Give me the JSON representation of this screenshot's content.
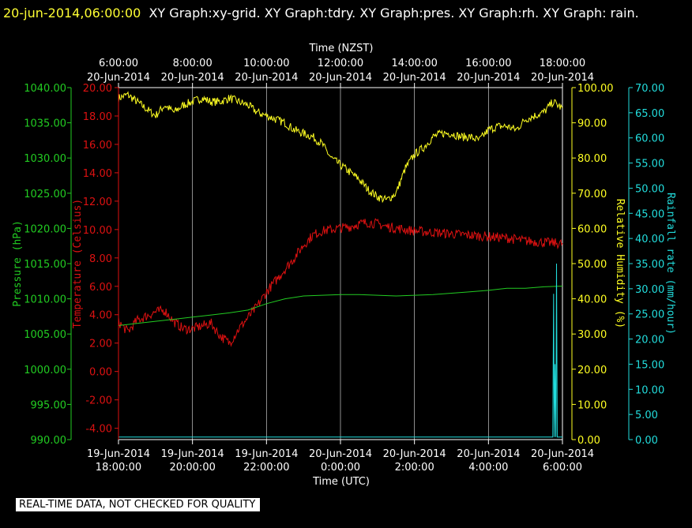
{
  "header": {
    "timestamp": "20-jun-2014,06:00:00",
    "title": "XY Graph:xy-grid.  XY Graph:tdry.  XY Graph:pres.  XY Graph:rh.  XY Graph: rain."
  },
  "disclaimer": "REAL-TIME DATA, NOT CHECKED FOR QUALITY",
  "colors": {
    "background": "#000000",
    "pressure": "#22cc22",
    "temperature": "#dd1111",
    "humidity": "#ffff22",
    "rain": "#22dddd",
    "grid": "#ffffff"
  },
  "chart_data": {
    "type": "line",
    "grid": true,
    "x_top": {
      "label": "Time (NZST)",
      "ticks": [
        {
          "t": 0,
          "line1": "6:00:00",
          "line2": "20-Jun-2014"
        },
        {
          "t": 2,
          "line1": "8:00:00",
          "line2": "20-Jun-2014"
        },
        {
          "t": 4,
          "line1": "10:00:00",
          "line2": "20-Jun-2014"
        },
        {
          "t": 6,
          "line1": "12:00:00",
          "line2": "20-Jun-2014"
        },
        {
          "t": 8,
          "line1": "14:00:00",
          "line2": "20-Jun-2014"
        },
        {
          "t": 10,
          "line1": "16:00:00",
          "line2": "20-Jun-2014"
        },
        {
          "t": 12,
          "line1": "18:00:00",
          "line2": "20-Jun-2014"
        }
      ]
    },
    "x_bottom": {
      "label": "Time (UTC)",
      "range": [
        0,
        12
      ],
      "ticks": [
        {
          "t": 0,
          "line1": "19-Jun-2014",
          "line2": "18:00:00"
        },
        {
          "t": 2,
          "line1": "19-Jun-2014",
          "line2": "20:00:00"
        },
        {
          "t": 4,
          "line1": "19-Jun-2014",
          "line2": "22:00:00"
        },
        {
          "t": 6,
          "line1": "20-Jun-2014",
          "line2": "0:00:00"
        },
        {
          "t": 8,
          "line1": "20-Jun-2014",
          "line2": "2:00:00"
        },
        {
          "t": 10,
          "line1": "20-Jun-2014",
          "line2": "4:00:00"
        },
        {
          "t": 12,
          "line1": "20-Jun-2014",
          "line2": "6:00:00"
        }
      ]
    },
    "axes": {
      "pressure": {
        "label": "Pressure (hPa)",
        "range": [
          990,
          1040
        ],
        "ticks": [
          "990.00",
          "995.00",
          "1000.00",
          "1005.00",
          "1010.00",
          "1015.00",
          "1020.00",
          "1025.00",
          "1030.00",
          "1035.00",
          "1040.00"
        ]
      },
      "temperature": {
        "label": "Temperature (Celsius)",
        "range": [
          -4.8,
          20
        ],
        "ticks": [
          "-4.00",
          "-2.00",
          "0.00",
          "2.00",
          "4.00",
          "6.00",
          "8.00",
          "10.00",
          "12.00",
          "14.00",
          "16.00",
          "18.00",
          "20.00"
        ]
      },
      "humidity": {
        "label": "Relative Humidity (%)",
        "range": [
          0,
          100
        ],
        "ticks": [
          "0.00",
          "10.00",
          "20.00",
          "30.00",
          "40.00",
          "50.00",
          "60.00",
          "70.00",
          "80.00",
          "90.00",
          "100.00"
        ]
      },
      "rain": {
        "label": "Rainfall rate (mm/hour)",
        "range": [
          0,
          70
        ],
        "ticks": [
          "0.00",
          "5.00",
          "10.00",
          "15.00",
          "20.00",
          "25.00",
          "30.00",
          "35.00",
          "40.00",
          "45.00",
          "50.00",
          "55.00",
          "60.00",
          "65.00",
          "70.00"
        ]
      }
    },
    "series": [
      {
        "key": "humidity",
        "name": "rh",
        "noise": 1.2,
        "x": [
          0,
          0.25,
          0.5,
          0.75,
          1.0,
          1.25,
          1.5,
          1.75,
          2.0,
          2.25,
          2.5,
          2.75,
          3.0,
          3.25,
          3.5,
          3.75,
          4.0,
          4.25,
          4.5,
          4.75,
          5.0,
          5.25,
          5.5,
          5.75,
          6.0,
          6.25,
          6.5,
          6.75,
          7.0,
          7.25,
          7.5,
          7.75,
          8.0,
          8.25,
          8.5,
          8.75,
          9.0,
          9.25,
          9.5,
          9.75,
          10.0,
          10.25,
          10.5,
          10.75,
          11.0,
          11.25,
          11.5,
          11.75,
          12.0
        ],
        "y": [
          97,
          98,
          96,
          94,
          92,
          95,
          93,
          95,
          96,
          97,
          96,
          96,
          97,
          96,
          95,
          93,
          92,
          91,
          90,
          88,
          87,
          86,
          84,
          80,
          78,
          76,
          74,
          71,
          69,
          68,
          70,
          77,
          81,
          83,
          86,
          87,
          87,
          86,
          86,
          85,
          88,
          89,
          89,
          88,
          91,
          92,
          93,
          96,
          94
        ]
      },
      {
        "key": "temperature",
        "name": "tdry",
        "noise": 0.35,
        "x": [
          0,
          0.25,
          0.5,
          0.75,
          1.0,
          1.25,
          1.5,
          1.75,
          2.0,
          2.25,
          2.5,
          2.75,
          3.0,
          3.25,
          3.5,
          3.75,
          4.0,
          4.25,
          4.5,
          4.75,
          5.0,
          5.25,
          5.5,
          5.75,
          6.0,
          6.25,
          6.5,
          6.75,
          7.0,
          7.25,
          7.5,
          7.75,
          8.0,
          8.5,
          9.0,
          9.5,
          10.0,
          10.5,
          11.0,
          11.5,
          12.0
        ],
        "y": [
          3.5,
          2.8,
          3.6,
          3.9,
          4.2,
          4.3,
          3.5,
          3.0,
          3.0,
          3.2,
          3.4,
          2.5,
          2.0,
          3.0,
          3.8,
          4.6,
          5.6,
          6.4,
          7.2,
          8.0,
          8.9,
          9.6,
          9.9,
          10.0,
          10.1,
          10.2,
          10.4,
          10.5,
          10.4,
          10.2,
          10.1,
          10.0,
          9.9,
          9.8,
          9.7,
          9.6,
          9.5,
          9.4,
          9.2,
          9.1,
          9.0
        ]
      },
      {
        "key": "pressure",
        "name": "pres",
        "noise": 0,
        "x": [
          0,
          0.5,
          1.0,
          1.5,
          2.0,
          2.5,
          3.0,
          3.5,
          4.0,
          4.5,
          5.0,
          5.5,
          6.0,
          6.5,
          7.0,
          7.5,
          8.0,
          8.5,
          9.0,
          9.5,
          10.0,
          10.5,
          11.0,
          11.5,
          12.0
        ],
        "y": [
          1006.2,
          1006.5,
          1006.8,
          1007.1,
          1007.4,
          1007.7,
          1008.0,
          1008.4,
          1009.3,
          1010.0,
          1010.4,
          1010.5,
          1010.6,
          1010.6,
          1010.5,
          1010.4,
          1010.5,
          1010.6,
          1010.8,
          1011.0,
          1011.2,
          1011.5,
          1011.5,
          1011.7,
          1011.8
        ]
      },
      {
        "key": "rain",
        "name": "rain",
        "noise": 0,
        "x": [
          0,
          11.7,
          11.74,
          11.76,
          11.78,
          11.8,
          11.82,
          11.84,
          11.86,
          11.9,
          12.0
        ],
        "y": [
          0.5,
          0.5,
          0.5,
          29,
          0.5,
          15,
          0.5,
          35,
          0.5,
          0.5,
          0.5
        ]
      }
    ]
  }
}
